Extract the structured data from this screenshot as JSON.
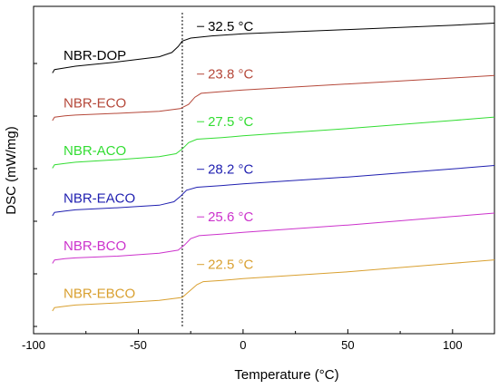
{
  "chart_data": {
    "type": "line",
    "title": "",
    "xlabel": "Temperature (°C)",
    "ylabel": "DSC (mW/mg)",
    "xlim": [
      -100,
      120
    ],
    "xticks": [
      -100,
      -50,
      0,
      50,
      100
    ],
    "y_tick_labels_shown": false,
    "grid": false,
    "legend": "inline labels at left",
    "reference_line": {
      "x": -29,
      "style": "dotted"
    },
    "series": [
      {
        "name": "NBR-DOP",
        "color": "#000000",
        "tg_label": "−32.5 °C",
        "tg": -32.5,
        "offset": 5,
        "x": [
          -91,
          -90,
          -85,
          -80,
          -60,
          -40,
          -34,
          -31,
          -29,
          -25,
          -15,
          0,
          50,
          100,
          120
        ],
        "y": [
          0.0,
          0.08,
          0.12,
          0.16,
          0.26,
          0.38,
          0.48,
          0.62,
          0.75,
          0.82,
          0.87,
          0.92,
          1.02,
          1.12,
          1.17
        ]
      },
      {
        "name": "NBR-ECO",
        "color": "#b5483a",
        "tg_label": "−23.8 °C",
        "tg": -23.8,
        "offset": 4,
        "x": [
          -91,
          -90,
          -85,
          -80,
          -60,
          -40,
          -30,
          -26,
          -23,
          -20,
          -10,
          0,
          50,
          100,
          120
        ],
        "y": [
          0.0,
          0.08,
          0.11,
          0.13,
          0.17,
          0.22,
          0.28,
          0.38,
          0.55,
          0.64,
          0.68,
          0.72,
          0.86,
          1.0,
          1.06
        ]
      },
      {
        "name": "NBR-ACO",
        "color": "#33dd33",
        "tg_label": "−27.5 °C",
        "tg": -27.5,
        "offset": 3,
        "x": [
          -91,
          -90,
          -85,
          -80,
          -60,
          -40,
          -32,
          -29,
          -26,
          -22,
          -10,
          0,
          50,
          100,
          120
        ],
        "y": [
          0.0,
          0.08,
          0.11,
          0.14,
          0.2,
          0.27,
          0.34,
          0.45,
          0.6,
          0.68,
          0.72,
          0.76,
          0.93,
          1.12,
          1.2
        ]
      },
      {
        "name": "NBR-EACO",
        "color": "#1f1fb0",
        "tg_label": "−28.2 °C",
        "tg": -28.2,
        "offset": 2,
        "x": [
          -91,
          -90,
          -85,
          -80,
          -60,
          -40,
          -33,
          -30,
          -27,
          -22,
          -10,
          0,
          50,
          100,
          120
        ],
        "y": [
          0.0,
          0.08,
          0.11,
          0.14,
          0.19,
          0.25,
          0.33,
          0.45,
          0.6,
          0.67,
          0.71,
          0.75,
          0.91,
          1.1,
          1.18
        ]
      },
      {
        "name": "NBR-BCO",
        "color": "#cc33cc",
        "tg_label": "−25.6 °C",
        "tg": -25.6,
        "offset": 1,
        "x": [
          -91,
          -90,
          -85,
          -80,
          -60,
          -40,
          -31,
          -28,
          -25,
          -21,
          -10,
          0,
          50,
          100,
          120
        ],
        "y": [
          0.0,
          0.08,
          0.11,
          0.13,
          0.17,
          0.24,
          0.31,
          0.43,
          0.58,
          0.65,
          0.69,
          0.73,
          0.9,
          1.1,
          1.18
        ]
      },
      {
        "name": "NBR-EBCO",
        "color": "#d9a030",
        "tg_label": "−22.5 °C",
        "tg": -22.5,
        "offset": 0,
        "x": [
          -91,
          -90,
          -85,
          -80,
          -60,
          -40,
          -29,
          -26,
          -22,
          -19,
          -10,
          0,
          50,
          100,
          120
        ],
        "y": [
          0.0,
          0.08,
          0.11,
          0.14,
          0.19,
          0.25,
          0.32,
          0.45,
          0.62,
          0.69,
          0.72,
          0.76,
          0.92,
          1.12,
          1.2
        ]
      }
    ]
  }
}
